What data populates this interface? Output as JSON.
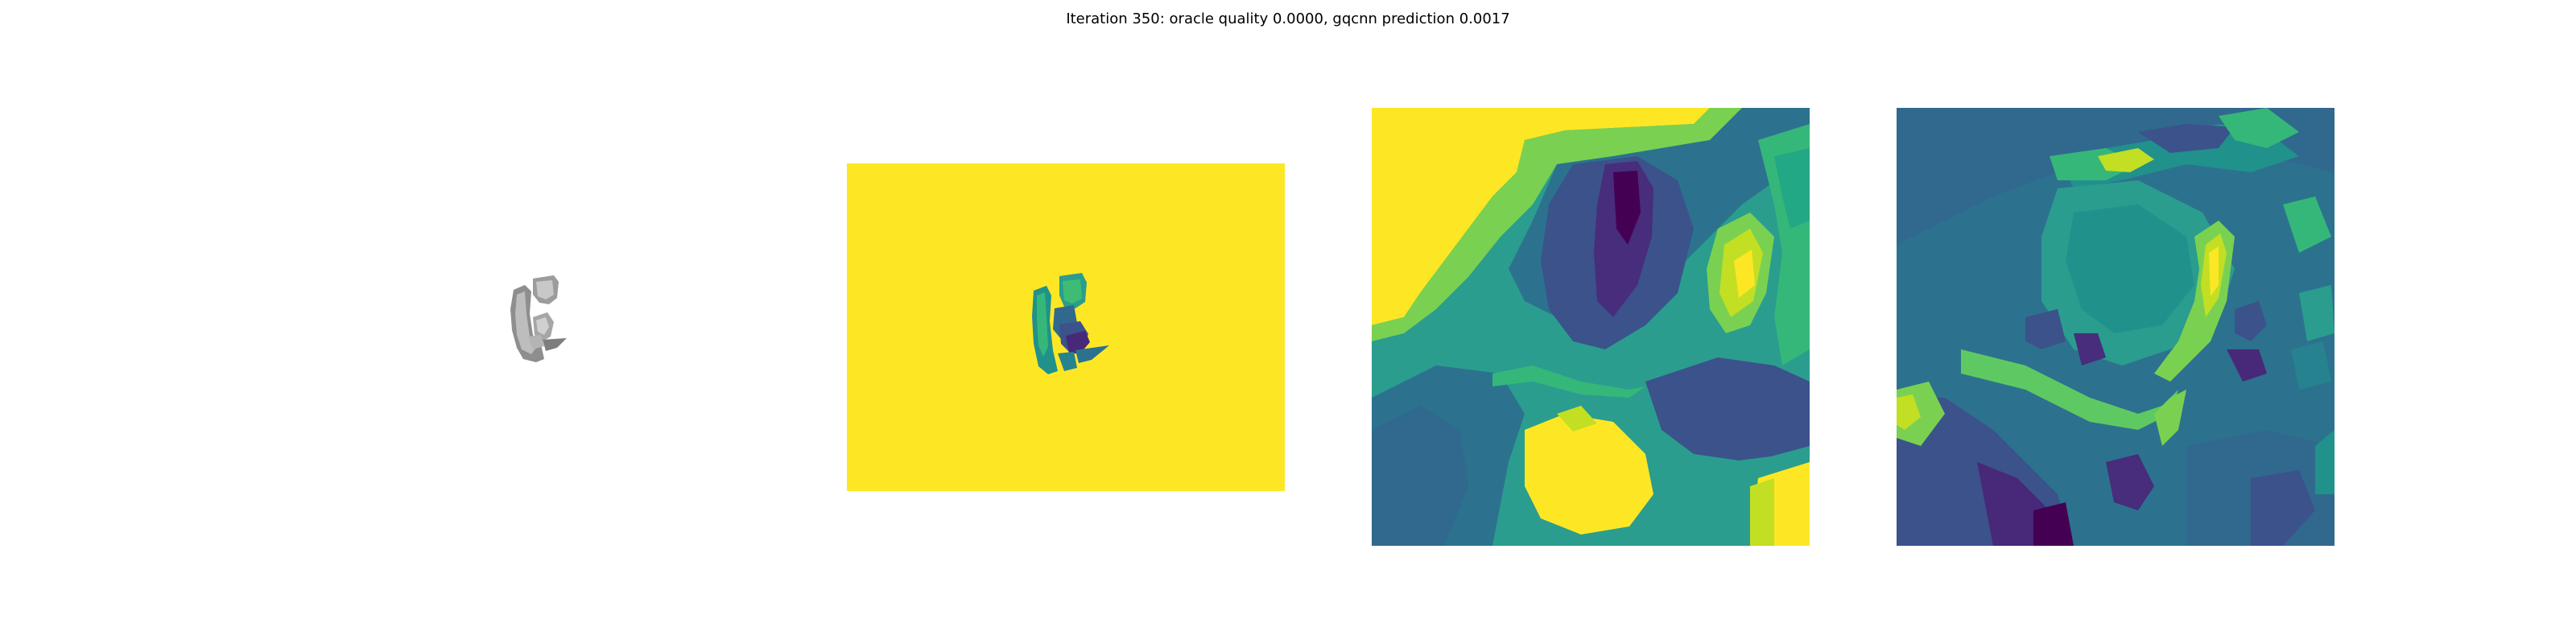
{
  "figure": {
    "title": "Iteration 350: oracle quality 0.0000, gqcnn prediction 0.0017"
  },
  "colors": {
    "background": "#ffffff",
    "viridis_yellow": "#fde725",
    "viridis_green": "#5ec962",
    "viridis_teal": "#21918c",
    "viridis_blue": "#3b528b",
    "viridis_purple": "#440154",
    "object_gray": "#9a9a9a"
  },
  "panels": [
    {
      "name": "object-render",
      "kind": "grayscale rendering of object"
    },
    {
      "name": "depth-image",
      "kind": "full depth image, viridis colormap"
    },
    {
      "name": "depth-crop",
      "kind": "cropped depth patch, viridis colormap"
    },
    {
      "name": "depth-crop-normalized",
      "kind": "cropped normalized depth patch, viridis colormap"
    }
  ]
}
